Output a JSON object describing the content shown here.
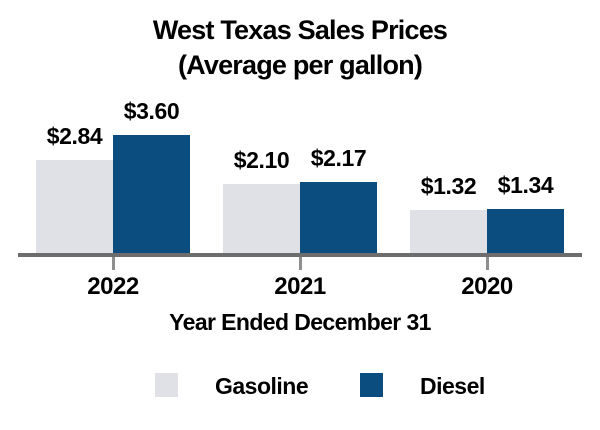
{
  "title": {
    "line1": "West Texas Sales Prices",
    "line2": "(Average per gallon)"
  },
  "chart_data": {
    "type": "bar",
    "categories": [
      "2022",
      "2021",
      "2020"
    ],
    "series": [
      {
        "name": "Gasoline",
        "color": "#dfe1e6",
        "values": [
          2.84,
          2.1,
          1.32
        ],
        "value_labels": [
          "$2.84",
          "$2.10",
          "$1.32"
        ]
      },
      {
        "name": "Diesel",
        "color": "#0b4d7e",
        "values": [
          3.6,
          2.17,
          1.34
        ],
        "value_labels": [
          "$3.60",
          "$2.17",
          "$1.34"
        ]
      }
    ],
    "title": "West Texas Sales Prices (Average per gallon)",
    "xlabel": "Year Ended December 31",
    "ylabel": "",
    "ylim": [
      0,
      4.0
    ],
    "grid": false,
    "y_axis_visible": false,
    "legend_position": "bottom"
  },
  "colors": {
    "background": "#ffffff",
    "text": "#000000",
    "axis": "#6d6d6d",
    "tick": "#8f8f8f",
    "gasoline": "#dfe1e6",
    "diesel": "#0b4d7e"
  }
}
